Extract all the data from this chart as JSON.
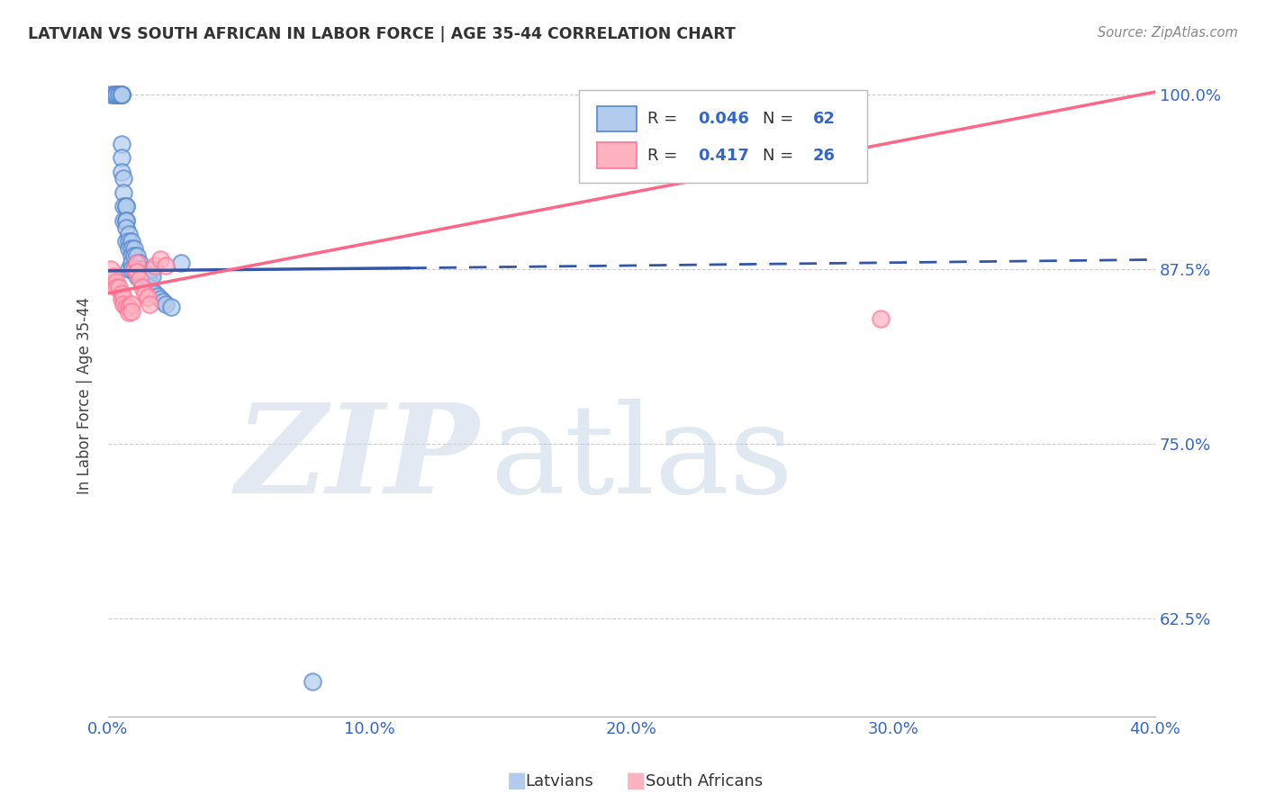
{
  "title": "LATVIAN VS SOUTH AFRICAN IN LABOR FORCE | AGE 35-44 CORRELATION CHART",
  "source": "Source: ZipAtlas.com",
  "ylabel": "In Labor Force | Age 35-44",
  "blue_face": "#b3ccee",
  "blue_edge": "#5588cc",
  "pink_face": "#ffb3c1",
  "pink_edge": "#ff7799",
  "blue_line": "#3355aa",
  "pink_line": "#ff6688",
  "tick_color": "#3366cc",
  "title_color": "#333333",
  "source_color": "#888888",
  "grid_color": "#cccccc",
  "xlim": [
    0.0,
    0.4
  ],
  "ylim": [
    0.555,
    1.015
  ],
  "yticks": [
    0.625,
    0.75,
    0.875,
    1.0
  ],
  "ytick_labels": [
    "62.5%",
    "75.0%",
    "87.5%",
    "100.0%"
  ],
  "xtick_labels": [
    "0.0%",
    "10.0%",
    "20.0%",
    "30.0%",
    "40.0%"
  ],
  "legend_1_r": "0.046",
  "legend_1_n": "62",
  "legend_2_r": "0.417",
  "legend_2_n": "26",
  "bottom_legend_1": "Latvians",
  "bottom_legend_2": "South Africans",
  "latvian_x": [
    0.001,
    0.002,
    0.003,
    0.003,
    0.003,
    0.003,
    0.004,
    0.004,
    0.005,
    0.005,
    0.005,
    0.005,
    0.005,
    0.005,
    0.005,
    0.006,
    0.006,
    0.006,
    0.006,
    0.007,
    0.007,
    0.007,
    0.007,
    0.007,
    0.007,
    0.008,
    0.008,
    0.008,
    0.008,
    0.009,
    0.009,
    0.009,
    0.009,
    0.009,
    0.01,
    0.01,
    0.01,
    0.011,
    0.011,
    0.011,
    0.011,
    0.012,
    0.012,
    0.012,
    0.013,
    0.013,
    0.013,
    0.014,
    0.015,
    0.016,
    0.016,
    0.017,
    0.018,
    0.019,
    0.02,
    0.021,
    0.022,
    0.024,
    0.028,
    0.017,
    0.017,
    0.078
  ],
  "latvian_y": [
    1.0,
    1.0,
    1.0,
    1.0,
    1.0,
    1.0,
    1.0,
    1.0,
    1.0,
    1.0,
    1.0,
    1.0,
    0.965,
    0.955,
    0.945,
    0.94,
    0.93,
    0.92,
    0.91,
    0.92,
    0.92,
    0.91,
    0.91,
    0.905,
    0.895,
    0.9,
    0.895,
    0.89,
    0.875,
    0.895,
    0.89,
    0.885,
    0.88,
    0.875,
    0.89,
    0.885,
    0.875,
    0.885,
    0.88,
    0.875,
    0.87,
    0.88,
    0.875,
    0.87,
    0.875,
    0.87,
    0.865,
    0.87,
    0.87,
    0.866,
    0.862,
    0.86,
    0.858,
    0.856,
    0.854,
    0.852,
    0.85,
    0.848,
    0.88,
    0.875,
    0.87,
    0.58
  ],
  "sa_x": [
    0.001,
    0.002,
    0.003,
    0.003,
    0.004,
    0.005,
    0.005,
    0.006,
    0.006,
    0.007,
    0.008,
    0.008,
    0.009,
    0.009,
    0.01,
    0.011,
    0.011,
    0.012,
    0.013,
    0.014,
    0.015,
    0.016,
    0.018,
    0.02,
    0.022,
    0.295
  ],
  "sa_y": [
    0.875,
    0.87,
    0.866,
    0.862,
    0.862,
    0.858,
    0.854,
    0.855,
    0.85,
    0.848,
    0.848,
    0.844,
    0.85,
    0.845,
    0.875,
    0.88,
    0.873,
    0.868,
    0.862,
    0.858,
    0.855,
    0.85,
    0.878,
    0.882,
    0.878,
    0.84
  ],
  "latvian_trend_x0": 0.0,
  "latvian_trend_y0": 0.874,
  "latvian_trend_x1_solid": 0.115,
  "latvian_trend_y1_solid": 0.876,
  "latvian_trend_x1_dash": 0.4,
  "latvian_trend_y1_dash": 0.882,
  "sa_trend_x0": 0.0,
  "sa_trend_y0": 0.858,
  "sa_trend_x1": 0.4,
  "sa_trend_y1": 1.002,
  "solid_line_end_latvian": 0.115
}
